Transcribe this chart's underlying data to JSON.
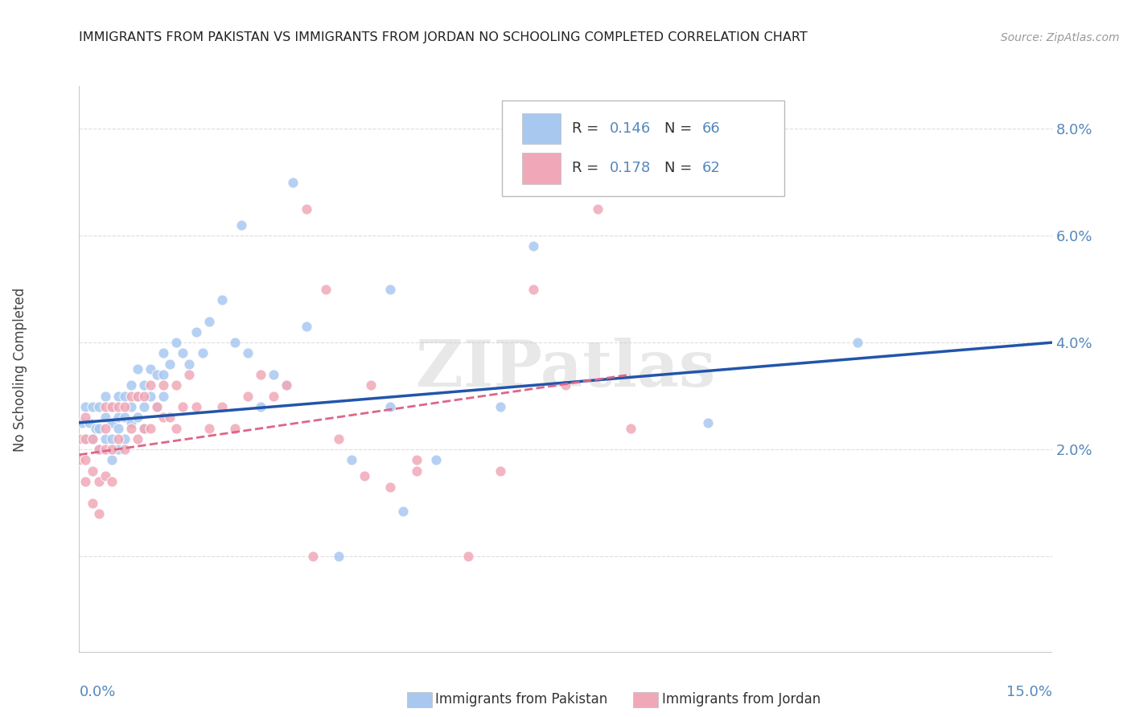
{
  "title": "IMMIGRANTS FROM PAKISTAN VS IMMIGRANTS FROM JORDAN NO SCHOOLING COMPLETED CORRELATION CHART",
  "source": "Source: ZipAtlas.com",
  "ylabel": "No Schooling Completed",
  "xlim": [
    0.0,
    0.15
  ],
  "ylim": [
    -0.018,
    0.088
  ],
  "yticks": [
    0.0,
    0.02,
    0.04,
    0.06,
    0.08
  ],
  "ytick_labels": [
    "",
    "2.0%",
    "4.0%",
    "6.0%",
    "8.0%"
  ],
  "background_color": "#ffffff",
  "watermark_text": "ZIPatlas",
  "legend_R1": "0.146",
  "legend_N1": "66",
  "legend_R2": "0.178",
  "legend_N2": "62",
  "color_pakistan": "#A8C8F0",
  "color_jordan": "#F0A8B8",
  "line_color_pakistan": "#2255AA",
  "line_color_jordan": "#DD6688",
  "grid_color": "#DDDDDD",
  "tick_color": "#5588BB",
  "title_color": "#222222",
  "source_color": "#999999",
  "ylabel_color": "#444444",
  "pakistan_x": [
    0.0005,
    0.001,
    0.001,
    0.0015,
    0.002,
    0.002,
    0.0025,
    0.003,
    0.003,
    0.003,
    0.004,
    0.004,
    0.004,
    0.005,
    0.005,
    0.005,
    0.005,
    0.006,
    0.006,
    0.006,
    0.006,
    0.007,
    0.007,
    0.007,
    0.008,
    0.008,
    0.008,
    0.009,
    0.009,
    0.009,
    0.01,
    0.01,
    0.01,
    0.011,
    0.011,
    0.012,
    0.012,
    0.013,
    0.013,
    0.013,
    0.014,
    0.015,
    0.016,
    0.017,
    0.018,
    0.019,
    0.02,
    0.022,
    0.024,
    0.026,
    0.028,
    0.03,
    0.032,
    0.035,
    0.04,
    0.042,
    0.048,
    0.05,
    0.055,
    0.065,
    0.07,
    0.097,
    0.12,
    0.048,
    0.033,
    0.025
  ],
  "pakistan_y": [
    0.025,
    0.022,
    0.028,
    0.025,
    0.022,
    0.028,
    0.024,
    0.02,
    0.024,
    0.028,
    0.022,
    0.026,
    0.03,
    0.018,
    0.022,
    0.025,
    0.028,
    0.02,
    0.024,
    0.026,
    0.03,
    0.022,
    0.026,
    0.03,
    0.025,
    0.028,
    0.032,
    0.026,
    0.03,
    0.035,
    0.024,
    0.028,
    0.032,
    0.03,
    0.035,
    0.028,
    0.034,
    0.03,
    0.034,
    0.038,
    0.036,
    0.04,
    0.038,
    0.036,
    0.042,
    0.038,
    0.044,
    0.048,
    0.04,
    0.038,
    0.028,
    0.034,
    0.032,
    0.043,
    0.0,
    0.018,
    0.028,
    0.0085,
    0.018,
    0.028,
    0.058,
    0.025,
    0.04,
    0.05,
    0.07,
    0.062
  ],
  "jordan_x": [
    0.0,
    0.0,
    0.001,
    0.001,
    0.001,
    0.001,
    0.002,
    0.002,
    0.002,
    0.003,
    0.003,
    0.003,
    0.004,
    0.004,
    0.004,
    0.004,
    0.005,
    0.005,
    0.005,
    0.006,
    0.006,
    0.007,
    0.007,
    0.008,
    0.008,
    0.009,
    0.009,
    0.01,
    0.01,
    0.011,
    0.011,
    0.012,
    0.013,
    0.013,
    0.014,
    0.015,
    0.015,
    0.016,
    0.017,
    0.018,
    0.02,
    0.022,
    0.024,
    0.026,
    0.028,
    0.03,
    0.032,
    0.036,
    0.04,
    0.044,
    0.048,
    0.052,
    0.06,
    0.065,
    0.07,
    0.075,
    0.08,
    0.085,
    0.045,
    0.038,
    0.052,
    0.035
  ],
  "jordan_y": [
    0.018,
    0.022,
    0.014,
    0.018,
    0.022,
    0.026,
    0.01,
    0.016,
    0.022,
    0.008,
    0.014,
    0.02,
    0.015,
    0.02,
    0.024,
    0.028,
    0.014,
    0.02,
    0.028,
    0.022,
    0.028,
    0.02,
    0.028,
    0.024,
    0.03,
    0.022,
    0.03,
    0.024,
    0.03,
    0.024,
    0.032,
    0.028,
    0.026,
    0.032,
    0.026,
    0.024,
    0.032,
    0.028,
    0.034,
    0.028,
    0.024,
    0.028,
    0.024,
    0.03,
    0.034,
    0.03,
    0.032,
    0.0,
    0.022,
    0.015,
    0.013,
    0.018,
    0.0,
    0.016,
    0.05,
    0.032,
    0.065,
    0.024,
    0.032,
    0.05,
    0.016,
    0.065
  ],
  "pak_line_x": [
    0.0,
    0.15
  ],
  "pak_line_y": [
    0.025,
    0.04
  ],
  "jor_line_x": [
    0.0,
    0.085
  ],
  "jor_line_y": [
    0.019,
    0.034
  ]
}
